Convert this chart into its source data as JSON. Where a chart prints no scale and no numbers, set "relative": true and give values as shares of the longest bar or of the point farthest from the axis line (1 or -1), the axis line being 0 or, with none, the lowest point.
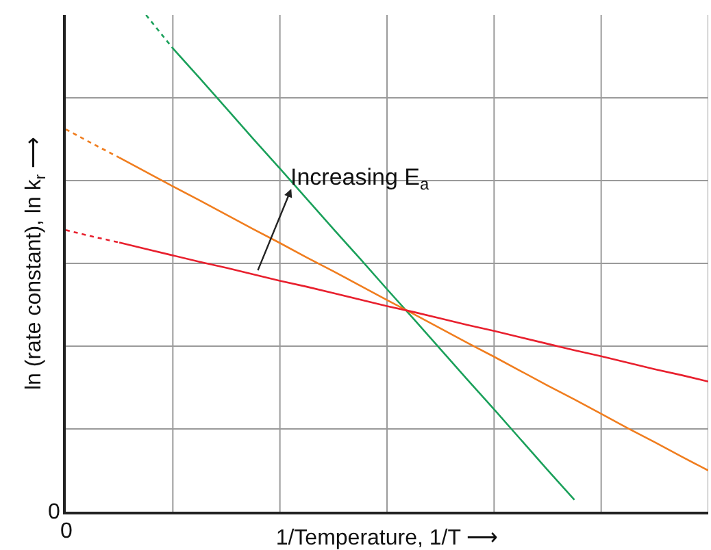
{
  "chart_data": {
    "type": "line",
    "relative": true,
    "xlabel": "1/Temperature, 1/T ⟶",
    "ylabel": "ln (rate constant), ln k$_{r}$ ⟶",
    "annotations": [
      "Increasing E$_{a}$",
      "0",
      "0"
    ],
    "grid": true,
    "categories": [
      null,
      null,
      null,
      null,
      null,
      null,
      null,
      null,
      null,
      null,
      null,
      null,
      null,
      null,
      null,
      null,
      null,
      null,
      null,
      null,
      null,
      null,
      null,
      null,
      null
    ],
    "series": [
      {
        "color": "#1aa05a",
        "line_style": "dotted",
        "values": [
          null,
          null,
          null,
          1.0,
          0.933,
          null,
          null,
          null,
          null,
          null,
          null,
          null,
          null,
          null,
          null,
          null,
          null,
          null,
          null,
          null,
          null,
          null,
          null,
          null,
          null
        ]
      },
      {
        "color": "#1aa05a",
        "line_style": "solid",
        "values": [
          null,
          null,
          null,
          null,
          0.933,
          0.873,
          0.812,
          0.751,
          0.691,
          0.63,
          0.569,
          0.509,
          0.448,
          0.388,
          0.327,
          0.266,
          0.206,
          0.145,
          0.084,
          0.024,
          null,
          null,
          null,
          null,
          null
        ]
      },
      {
        "color": "#f07d1e",
        "line_style": "dotted",
        "values": [
          0.77,
          0.741,
          0.713,
          null,
          null,
          null,
          null,
          null,
          null,
          null,
          null,
          null,
          null,
          null,
          null,
          null,
          null,
          null,
          null,
          null,
          null,
          null,
          null,
          null,
          null
        ]
      },
      {
        "color": "#f07d1e",
        "line_style": "solid",
        "values": [
          null,
          null,
          0.713,
          0.684,
          0.655,
          0.627,
          0.598,
          0.569,
          0.541,
          0.512,
          0.484,
          0.455,
          0.426,
          0.398,
          0.369,
          0.34,
          0.312,
          0.283,
          0.254,
          0.226,
          0.197,
          0.168,
          0.14,
          0.111,
          0.083
        ]
      },
      {
        "color": "#e8202e",
        "line_style": "dotted",
        "values": [
          0.567,
          0.554,
          0.542,
          null,
          null,
          null,
          null,
          null,
          null,
          null,
          null,
          null,
          null,
          null,
          null,
          null,
          null,
          null,
          null,
          null,
          null,
          null,
          null,
          null,
          null
        ]
      },
      {
        "color": "#e8202e",
        "line_style": "solid",
        "values": [
          null,
          null,
          0.542,
          0.529,
          0.516,
          0.503,
          0.491,
          0.478,
          0.465,
          0.453,
          0.44,
          0.427,
          0.414,
          0.402,
          0.389,
          0.376,
          0.364,
          0.351,
          0.338,
          0.325,
          0.313,
          0.3,
          0.287,
          0.275,
          0.262
        ]
      }
    ]
  }
}
